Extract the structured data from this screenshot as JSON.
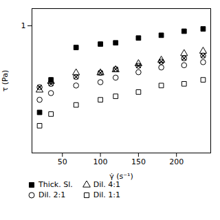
{
  "chart_data": {
    "type": "scatter",
    "xlabel": "γ̇ (s⁻¹)",
    "ylabel": "τ (Pa)",
    "xlim": [
      10,
      245
    ],
    "ylim": [
      0.05,
      1.5
    ],
    "xticks": [
      50,
      100,
      150,
      200
    ],
    "yticks": [
      1
    ],
    "log": "y",
    "grid": false,
    "legend": "bottom",
    "series": [
      {
        "name": "Thick. Sl.",
        "marker": "square-filled",
        "color": "black",
        "x": [
          20,
          35,
          68,
          100,
          120,
          150,
          180,
          210,
          235
        ],
        "values": [
          0.13,
          0.28,
          0.6,
          0.65,
          0.67,
          0.75,
          0.8,
          0.88,
          0.93
        ]
      },
      {
        "name": "Dil. 4:1",
        "marker": "triangle",
        "color": "black",
        "x": [
          20,
          35,
          68,
          100,
          120,
          150,
          180,
          210,
          235
        ],
        "values": [
          0.22,
          0.27,
          0.33,
          0.33,
          0.355,
          0.41,
          0.445,
          0.52,
          0.55
        ]
      },
      {
        "marker": "circle-times",
        "color": "black",
        "x": [
          20,
          35,
          68,
          100,
          120,
          150,
          180,
          210,
          235
        ],
        "values": [
          0.235,
          0.255,
          0.3,
          0.33,
          0.36,
          0.39,
          0.43,
          0.465,
          0.495
        ]
      },
      {
        "name": "Dil. 2:1",
        "marker": "circle",
        "color": "black",
        "x": [
          20,
          35,
          68,
          100,
          120,
          150,
          180,
          210,
          235
        ],
        "values": [
          0.175,
          0.205,
          0.245,
          0.265,
          0.295,
          0.335,
          0.375,
          0.395,
          0.425
        ]
      },
      {
        "name": "Dil. 1:1",
        "marker": "square",
        "color": "black",
        "x": [
          20,
          35,
          68,
          100,
          120,
          150,
          180,
          210,
          235
        ],
        "values": [
          0.095,
          0.125,
          0.155,
          0.175,
          0.19,
          0.21,
          0.245,
          0.255,
          0.28
        ]
      }
    ]
  }
}
